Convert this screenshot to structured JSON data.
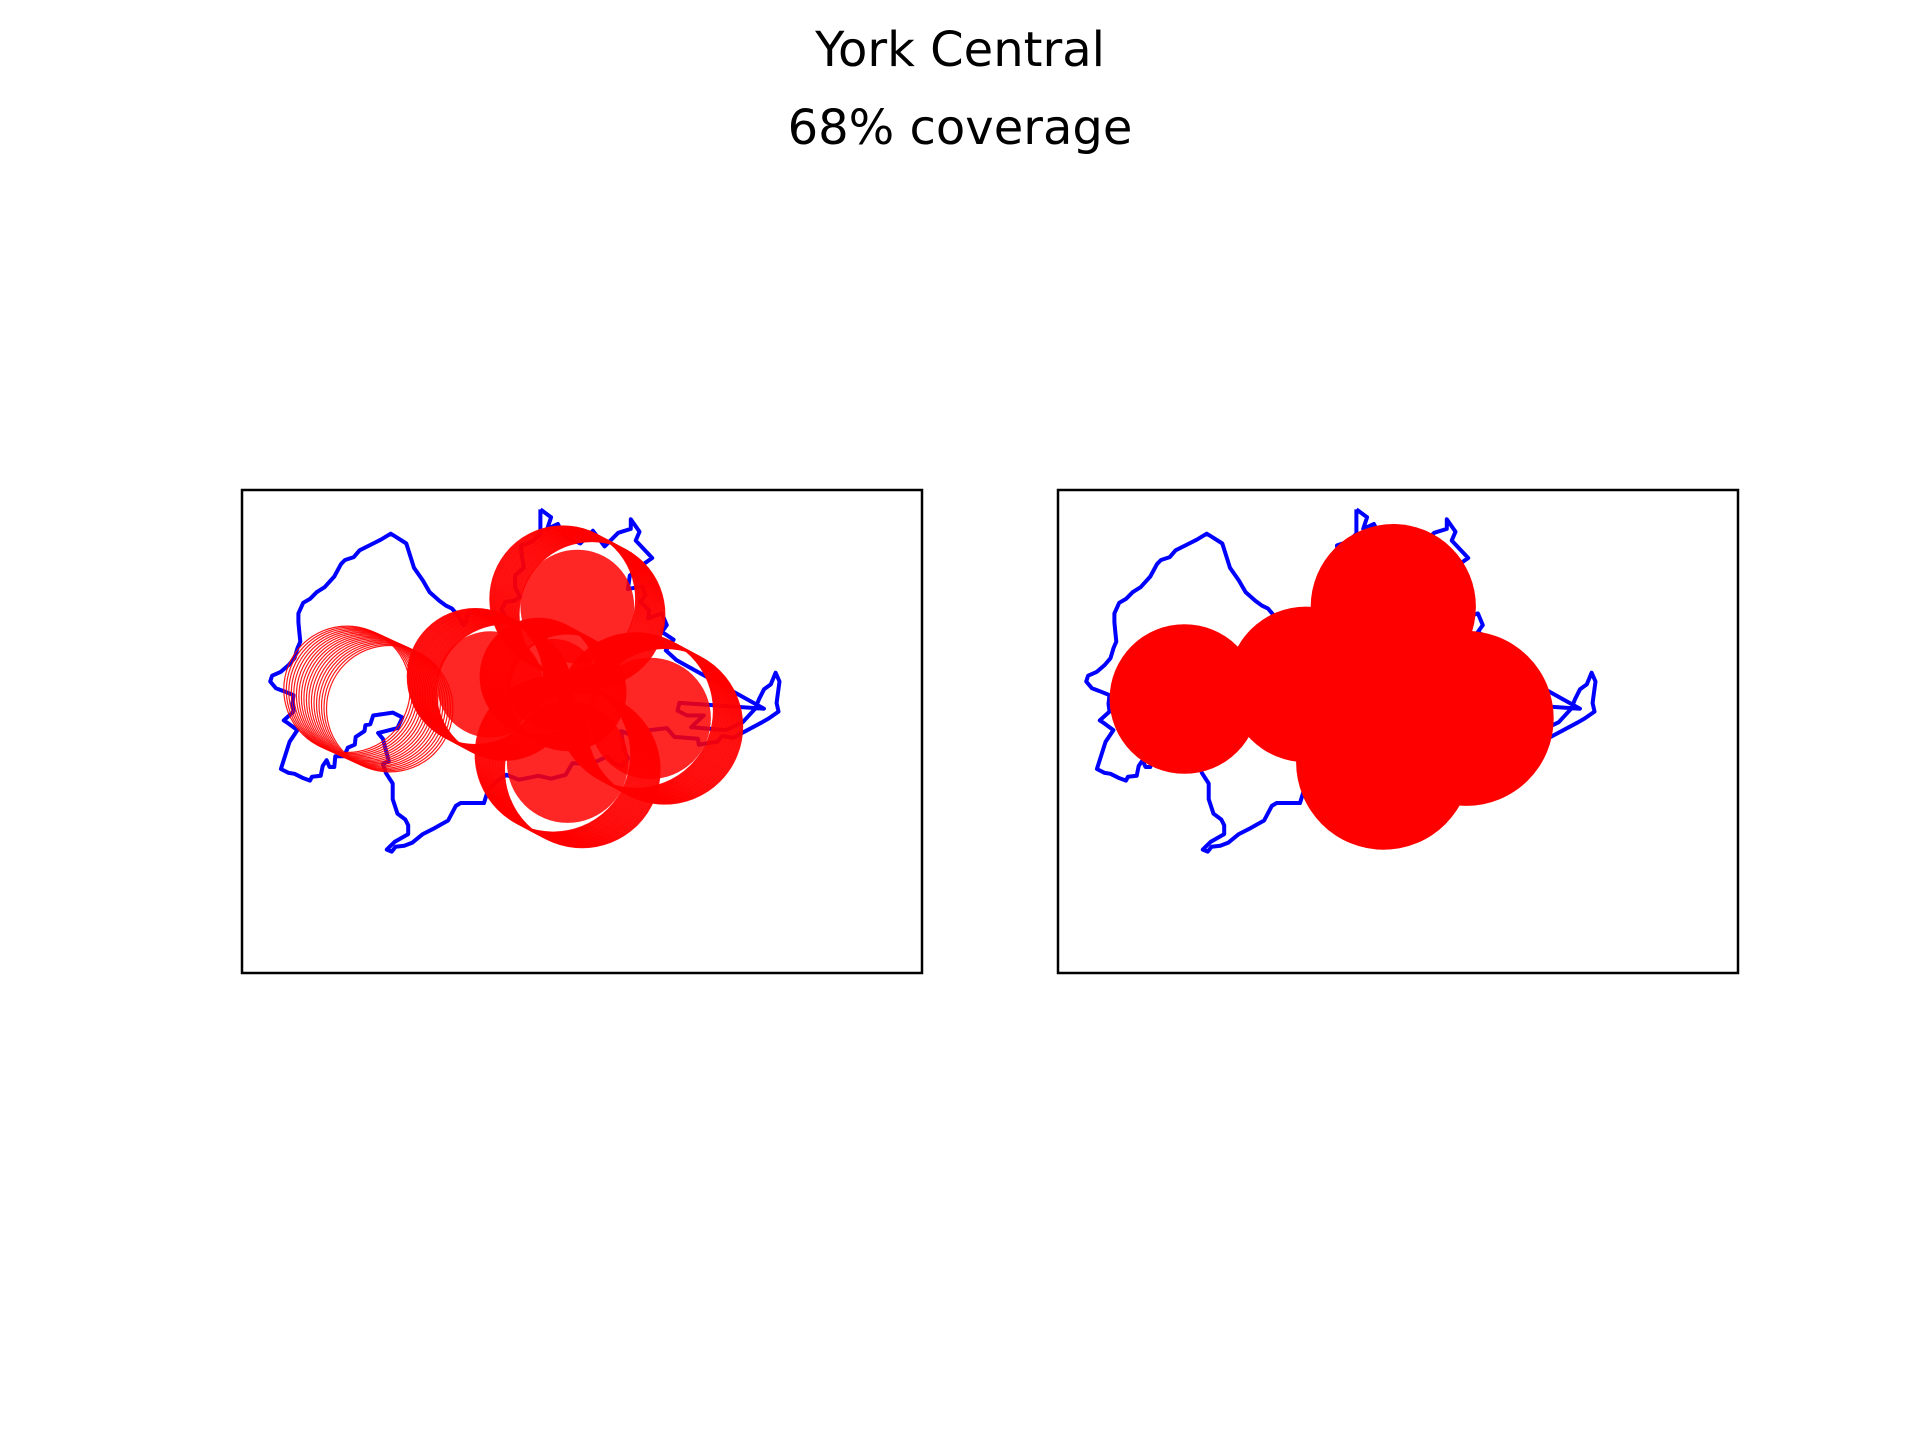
{
  "figure": {
    "title": "York Central",
    "subtitle": "68% coverage"
  },
  "colors": {
    "boundary": "#0000ff",
    "coverage": "#ff0000",
    "frame": "#000000",
    "background": "#ffffff"
  },
  "panels": [
    {
      "name": "coverage-rings",
      "style": "rings"
    },
    {
      "name": "coverage-filled",
      "style": "filled"
    }
  ]
}
